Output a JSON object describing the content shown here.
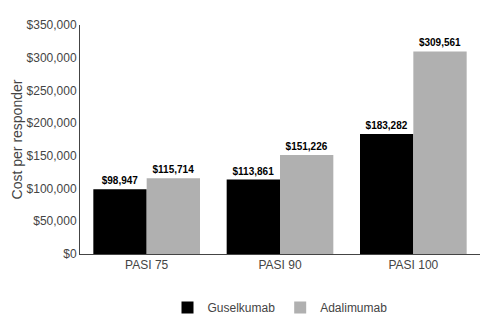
{
  "chart_data": {
    "type": "bar",
    "categories": [
      "PASI 75",
      "PASI 90",
      "PASI 100"
    ],
    "series": [
      {
        "name": "Guselkumab",
        "color": "#000000",
        "values": [
          98947,
          113861,
          183282
        ],
        "value_labels": [
          "$98,947",
          "$113,861",
          "$183,282"
        ]
      },
      {
        "name": "Adalimumab",
        "color": "#b0b0b0",
        "values": [
          115714,
          151226,
          309561
        ],
        "value_labels": [
          "$115,714",
          "$151,226",
          "$309,561"
        ]
      }
    ],
    "ylabel": "Cost per responder",
    "ylim": [
      0,
      350000
    ],
    "yticks": [
      {
        "value": 0,
        "label": "$0"
      },
      {
        "value": 50000,
        "label": "$50,000"
      },
      {
        "value": 100000,
        "label": "$100,000"
      },
      {
        "value": 150000,
        "label": "$150,000"
      },
      {
        "value": 200000,
        "label": "$200,000"
      },
      {
        "value": 250000,
        "label": "$250,000"
      },
      {
        "value": 300000,
        "label": "$300,000"
      },
      {
        "value": 350000,
        "label": "$350,000"
      }
    ],
    "data_labels": true,
    "grid": false,
    "legend": "bottom"
  }
}
